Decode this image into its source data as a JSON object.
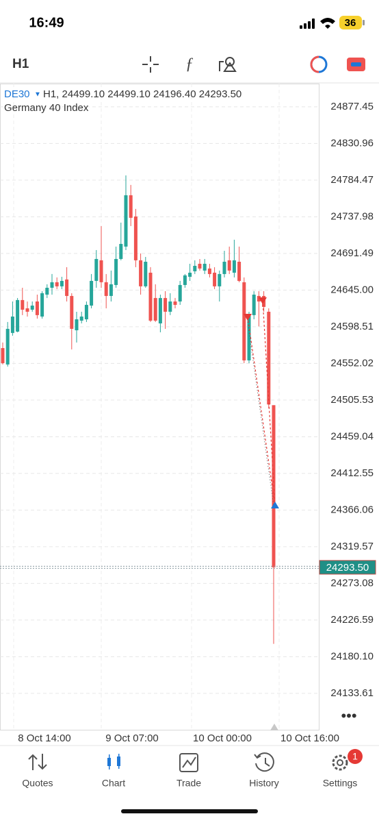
{
  "status_bar": {
    "time": "16:49",
    "battery": "36"
  },
  "toolbar": {
    "timeframe": "H1"
  },
  "chart": {
    "type": "candlestick",
    "symbol": "DE30",
    "info": "H1, 24499.10 24499.10 24196.40 24293.50",
    "description": "Germany 40 Index",
    "up_color": "#26a69a",
    "down_color": "#ef5350",
    "grid": true,
    "ylim": [
      24087.5,
      24906.9
    ],
    "yticks": [
      24877.45,
      24830.96,
      24784.47,
      24737.98,
      24691.49,
      {
        "value": 24645,
        "label": "24645.00"
      },
      24598.51,
      24552.02,
      24505.53,
      24459.04,
      24412.55,
      24366.06,
      24319.57,
      24273.08,
      24226.59,
      {
        "value": 24180.1,
        "label": "24180.10"
      },
      24133.61
    ],
    "xticks": [
      "8 Oct 14:00",
      "9 Oct 07:00",
      "10 Oct 00:00",
      "10 Oct 16:00"
    ],
    "current_price": {
      "value": 24293.5,
      "label": "24293.50"
    },
    "open": [
      24571.5,
      24550.7,
      24590.7,
      24592.4,
      24632.4,
      24621.9,
      24620.2,
      24630.6,
      24611.5,
      24639.3,
      24648.0,
      24655.0,
      24649.8,
      24658.5,
      24637.6,
      24594.1,
      24606.3,
      24608.0,
      24625.4,
      24656.7,
      24682.8,
      24655.0,
      24637.6,
      24651.5,
      24684.5,
      24700.2,
      24765.3,
      24738.4,
      24682.8,
      24649.8,
      24667.1,
      24635.0,
      24602.8,
      24635.0,
      24617.6,
      24630.6,
      24630.6,
      24651.5,
      24661.9,
      24668.9,
      24678.4,
      24669.8,
      24672.4,
      24667.1,
      24649.8,
      24665.4,
      24682.8,
      24667.1,
      24681.0,
      24655.0,
      24555.9,
      24613.3,
      24637.6,
      24637.6,
      24617.6,
      24499.1
    ],
    "high": [
      24578.5,
      24604.6,
      24630.6,
      24635.0,
      24648.0,
      24630.6,
      24630.6,
      24639.3,
      24643.7,
      24652.4,
      24665.4,
      24661.1,
      24661.9,
      24674.1,
      24641.1,
      24617.6,
      24617.6,
      24630.6,
      24665.4,
      24695.8,
      24726.2,
      24665.4,
      24669.8,
      24700.2,
      24730.6,
      24790.5,
      24778.4,
      24748.0,
      24691.5,
      24687.1,
      24674.1,
      24652.4,
      24639.3,
      24643.7,
      24641.1,
      24635.0,
      24656.7,
      24665.4,
      24678.4,
      24682.8,
      24684.5,
      24684.5,
      24678.4,
      24674.1,
      24669.8,
      24694.9,
      24700.2,
      24708.9,
      24700.2,
      24661.1,
      24617.6,
      24643.7,
      24643.7,
      24643.7,
      24621.9,
      24499.1
    ],
    "low": [
      24550.7,
      24548.1,
      24587.2,
      24591.5,
      24613.3,
      24611.5,
      24617.6,
      24608.9,
      24608.9,
      24635.0,
      24639.3,
      24646.3,
      24646.3,
      24630.6,
      24569.8,
      24578.5,
      24602.8,
      24604.6,
      24621.9,
      24648.0,
      24648.0,
      24621.9,
      24630.6,
      24648.0,
      24682.8,
      24695.8,
      24726.2,
      24674.1,
      24639.3,
      24648.0,
      24604.6,
      24604.6,
      24591.5,
      24595.9,
      24613.3,
      24621.9,
      24626.3,
      24648.0,
      24656.7,
      24665.4,
      24669.8,
      24665.4,
      24661.1,
      24646.3,
      24630.6,
      24661.1,
      24665.4,
      24661.1,
      24655.0,
      24552.4,
      24552.4,
      24608.0,
      24599.0,
      24617.6,
      24495.0,
      24196.4
    ],
    "close": [
      24552.4,
      24595.9,
      24611.5,
      24632.4,
      24620.2,
      24617.6,
      24625.4,
      24613.3,
      24641.1,
      24648.0,
      24655.0,
      24649.8,
      24656.7,
      24637.6,
      24595.9,
      24608.0,
      24611.5,
      24626.3,
      24656.7,
      24684.5,
      24655.0,
      24637.6,
      24652.4,
      24684.5,
      24703.6,
      24765.3,
      24736.7,
      24682.8,
      24649.8,
      24681.0,
      24606.3,
      24606.3,
      24635.0,
      24617.6,
      24630.6,
      24626.3,
      24651.5,
      24663.7,
      24667.1,
      24675.8,
      24672.4,
      24678.4,
      24665.4,
      24649.8,
      24665.4,
      24681.0,
      24669.8,
      24682.8,
      24656.7,
      24555.9,
      24613.3,
      24639.3,
      24630.6,
      24623.7,
      24500.0,
      24293.5
    ]
  },
  "tabs": [
    "Quotes",
    "Chart",
    "Trade",
    "History",
    "Settings"
  ],
  "settings_badge": "1"
}
